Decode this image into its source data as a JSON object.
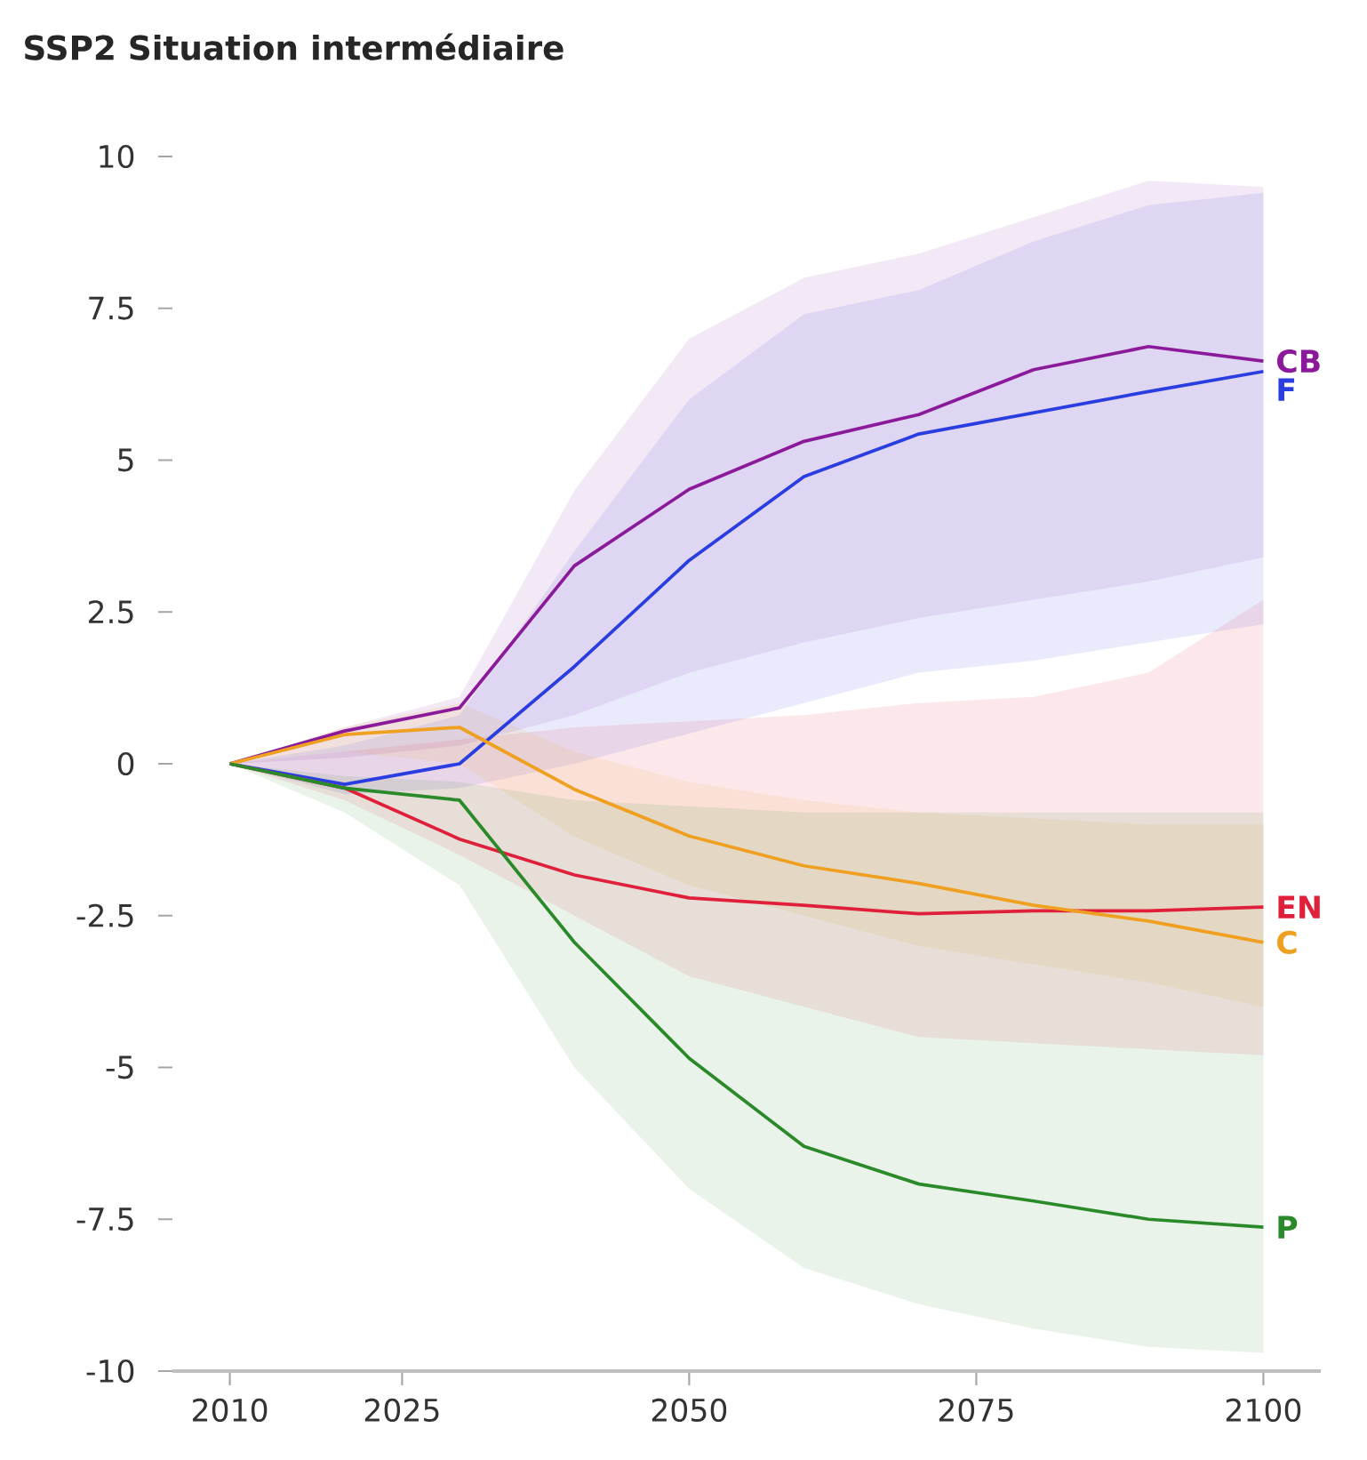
{
  "chart_data": {
    "type": "line",
    "title": "SSP2 Situation intermédiaire",
    "x": [
      2010,
      2020,
      2030,
      2040,
      2050,
      2060,
      2070,
      2080,
      2090,
      2100
    ],
    "xlim": [
      2005,
      2105
    ],
    "xticks": [
      2010,
      2025,
      2050,
      2075,
      2100
    ],
    "ylim": [
      -10,
      10
    ],
    "yticks": [
      10,
      7.5,
      5,
      2.5,
      0,
      -2.5,
      -5,
      -7.5,
      -10
    ],
    "line_style": "solid",
    "marker": "none",
    "grid": false,
    "series": [
      {
        "name": "CB",
        "color": "#8b1a9b",
        "values": [
          0,
          0.54,
          0.92,
          3.26,
          4.52,
          5.31,
          5.75,
          6.49,
          6.87,
          6.63
        ],
        "upper": [
          0,
          0.6,
          1.1,
          4.5,
          7.0,
          8.0,
          8.4,
          9.0,
          9.6,
          9.5
        ],
        "lower": [
          0,
          0.1,
          0.3,
          0.8,
          1.5,
          2.0,
          2.4,
          2.7,
          3.0,
          3.4
        ]
      },
      {
        "name": "F",
        "color": "#2a3de0",
        "values": [
          0,
          -0.34,
          0,
          1.6,
          3.35,
          4.73,
          5.43,
          5.78,
          6.13,
          6.46
        ],
        "upper": [
          0,
          0.3,
          0.8,
          3.5,
          6.0,
          7.4,
          7.8,
          8.6,
          9.2,
          9.4
        ],
        "lower": [
          0,
          -0.5,
          -0.4,
          0,
          0.5,
          1.0,
          1.5,
          1.7,
          2.0,
          2.3
        ]
      },
      {
        "name": "EN",
        "color": "#e0203a",
        "values": [
          0,
          -0.4,
          -1.24,
          -1.83,
          -2.21,
          -2.33,
          -2.47,
          -2.42,
          -2.42,
          -2.36
        ],
        "upper": [
          0,
          0.2,
          0.4,
          0.6,
          0.7,
          0.8,
          1.0,
          1.1,
          1.5,
          2.7
        ],
        "lower": [
          0,
          -0.6,
          -1.5,
          -2.5,
          -3.5,
          -4.0,
          -4.5,
          -4.6,
          -4.7,
          -4.8
        ]
      },
      {
        "name": "C",
        "color": "#f0a020",
        "values": [
          0,
          0.48,
          0.6,
          -0.42,
          -1.19,
          -1.68,
          -1.97,
          -2.33,
          -2.59,
          -2.94
        ],
        "upper": [
          0,
          0.6,
          1.0,
          0.2,
          -0.3,
          -0.6,
          -0.8,
          -0.9,
          -1.0,
          -1.0
        ],
        "lower": [
          0,
          0.2,
          0,
          -1.2,
          -2.0,
          -2.5,
          -3.0,
          -3.3,
          -3.6,
          -4.0
        ]
      },
      {
        "name": "P",
        "color": "#2a8a2a",
        "values": [
          0,
          -0.4,
          -0.6,
          -2.94,
          -4.85,
          -6.3,
          -6.92,
          -7.2,
          -7.5,
          -7.63
        ],
        "upper": [
          0,
          -0.2,
          -0.3,
          -0.6,
          -0.7,
          -0.8,
          -0.8,
          -0.8,
          -0.8,
          -0.8
        ],
        "lower": [
          0,
          -0.8,
          -2.0,
          -5.0,
          -7.0,
          -8.3,
          -8.9,
          -9.3,
          -9.6,
          -9.7
        ]
      }
    ]
  }
}
